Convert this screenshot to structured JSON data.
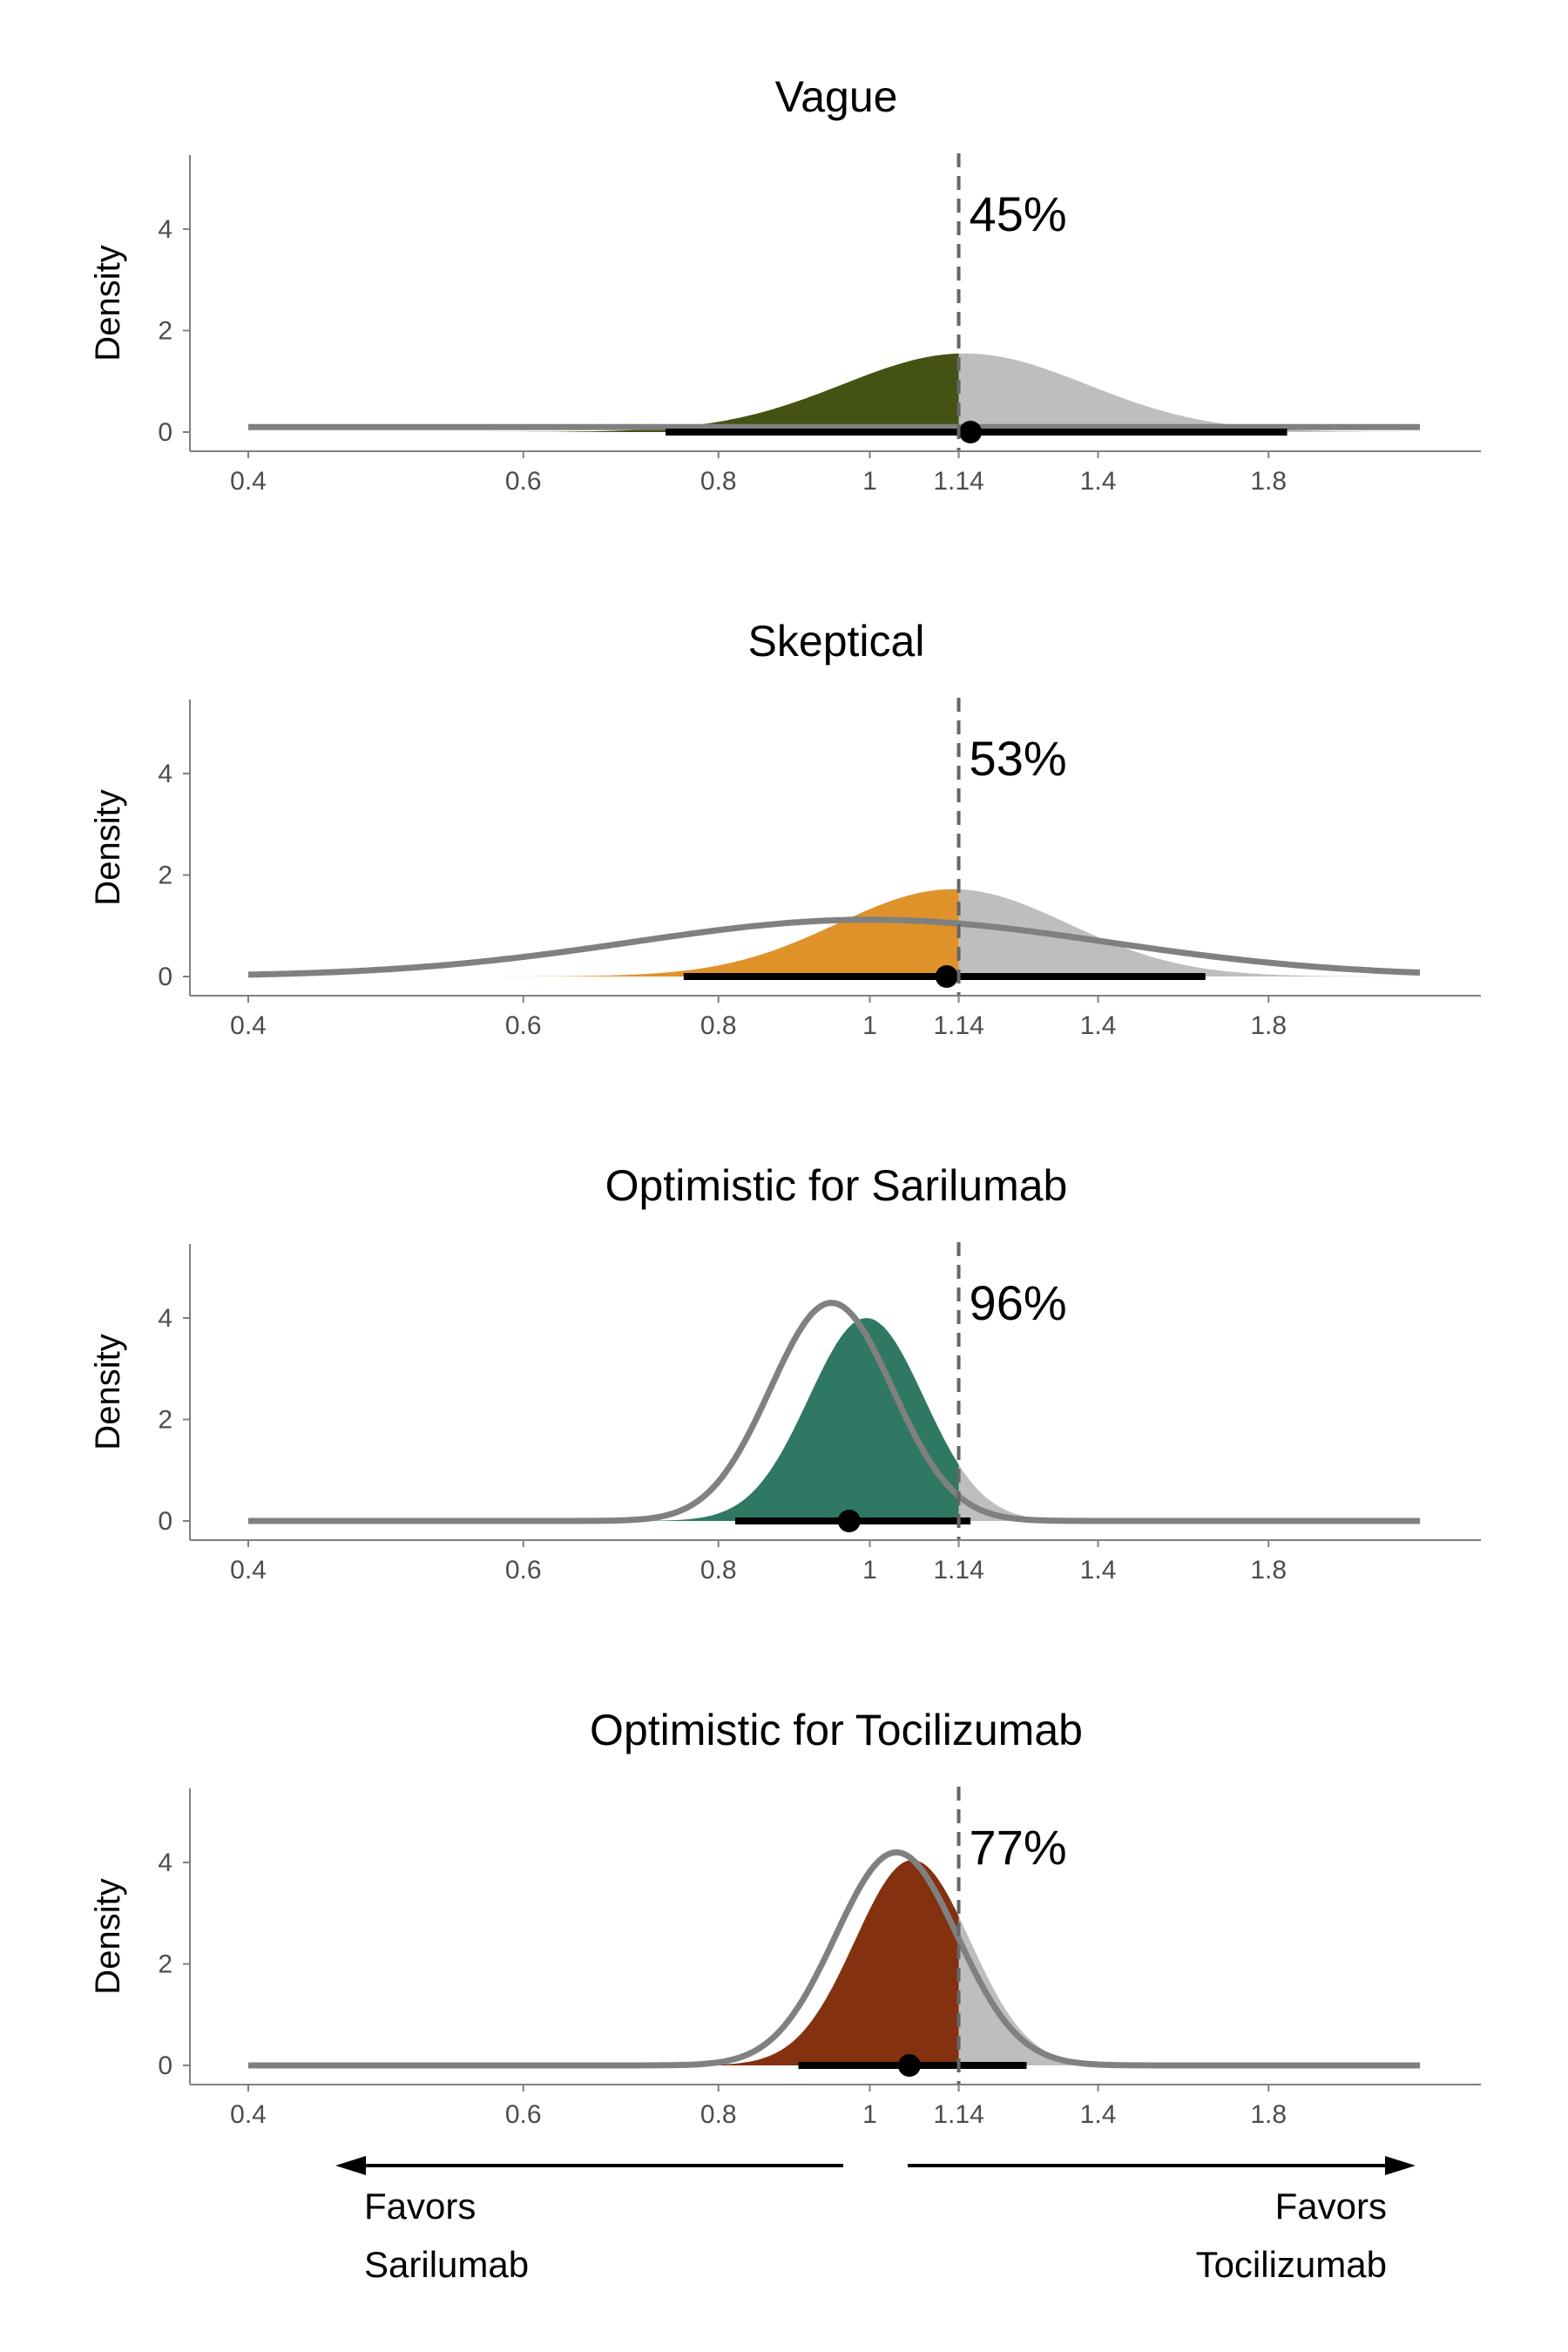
{
  "chart_data": [
    {
      "type": "area",
      "title": "Vague",
      "ylabel": "Density",
      "x_scale": "log",
      "x_ticks": [
        0.4,
        0.6,
        0.8,
        1,
        1.14,
        1.4,
        1.8
      ],
      "x_tick_labels": [
        "0.4",
        "0.6",
        "0.8",
        "1",
        "1.14",
        "1.4",
        "1.8"
      ],
      "y_ticks": [
        0,
        2,
        4
      ],
      "ylim": [
        -0.35,
        5.4
      ],
      "xlim": [
        0.4,
        2.25
      ],
      "reference_line": 1.14,
      "probability_label": "45%",
      "posterior": {
        "mode": 1.15,
        "sdlog": 0.18,
        "peak": 1.55
      },
      "prior": {
        "type": "flat",
        "level": 0.1
      },
      "point_estimate": 1.16,
      "interval": [
        0.74,
        1.85
      ],
      "fill_color": "#445314",
      "right_fill_color": "#bebebe"
    },
    {
      "type": "area",
      "title": "Skeptical",
      "ylabel": "Density",
      "x_scale": "log",
      "x_ticks": [
        0.4,
        0.6,
        0.8,
        1,
        1.14,
        1.4,
        1.8
      ],
      "x_tick_labels": [
        "0.4",
        "0.6",
        "0.8",
        "1",
        "1.14",
        "1.4",
        "1.8"
      ],
      "y_ticks": [
        0,
        2,
        4
      ],
      "ylim": [
        -0.35,
        5.4
      ],
      "xlim": [
        0.4,
        2.25
      ],
      "reference_line": 1.14,
      "probability_label": "53%",
      "posterior": {
        "mode": 1.13,
        "sdlog": 0.17,
        "peak": 1.72
      },
      "prior": {
        "type": "normal",
        "mode": 1.0,
        "sdlog": 0.35,
        "peak": 1.12
      },
      "point_estimate": 1.12,
      "interval": [
        0.76,
        1.64
      ],
      "fill_color": "#e0922a",
      "right_fill_color": "#bebebe"
    },
    {
      "type": "area",
      "title": "Optimistic for Sarilumab",
      "ylabel": "Density",
      "x_scale": "log",
      "x_ticks": [
        0.4,
        0.6,
        0.8,
        1,
        1.14,
        1.4,
        1.8
      ],
      "x_tick_labels": [
        "0.4",
        "0.6",
        "0.8",
        "1",
        "1.14",
        "1.4",
        "1.8"
      ],
      "y_ticks": [
        0,
        2,
        4
      ],
      "ylim": [
        -0.35,
        5.4
      ],
      "xlim": [
        0.4,
        2.25
      ],
      "reference_line": 1.14,
      "probability_label": "96%",
      "posterior": {
        "mode": 0.995,
        "sdlog": 0.085,
        "peak": 4.0
      },
      "prior": {
        "type": "normal",
        "mode": 0.945,
        "sdlog": 0.09,
        "peak": 4.3
      },
      "point_estimate": 0.97,
      "interval": [
        0.82,
        1.16
      ],
      "fill_color": "#2f7864",
      "right_fill_color": "#bebebe"
    },
    {
      "type": "area",
      "title": "Optimistic for Tocilizumab",
      "ylabel": "Density",
      "x_scale": "log",
      "x_ticks": [
        0.4,
        0.6,
        0.8,
        1,
        1.14,
        1.4,
        1.8
      ],
      "x_tick_labels": [
        "0.4",
        "0.6",
        "0.8",
        "1",
        "1.14",
        "1.4",
        "1.8"
      ],
      "y_ticks": [
        0,
        2,
        4
      ],
      "ylim": [
        -0.35,
        5.4
      ],
      "xlim": [
        0.4,
        2.25
      ],
      "reference_line": 1.14,
      "probability_label": "77%",
      "posterior": {
        "mode": 1.065,
        "sdlog": 0.085,
        "peak": 4.05
      },
      "prior": {
        "type": "normal",
        "mode": 1.04,
        "sdlog": 0.09,
        "peak": 4.2
      },
      "point_estimate": 1.06,
      "interval": [
        0.9,
        1.26
      ],
      "fill_color": "#84310f",
      "right_fill_color": "#bebebe"
    }
  ],
  "favors": {
    "left_line1": "Favors",
    "left_line2": "Sarilumab",
    "right_line1": "Favors",
    "right_line2": "Tocilizumab"
  }
}
